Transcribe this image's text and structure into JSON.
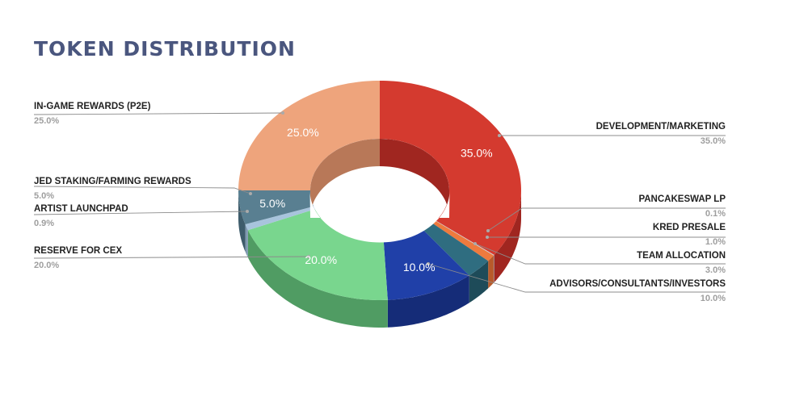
{
  "colors": {
    "title": "#4a567e",
    "leader": "#8c8c8c"
  },
  "chart_data": {
    "type": "pie",
    "style": "3d-donut",
    "title": "TOKEN DISTRIBUTION",
    "unit": "%",
    "legend_placement": "outside labels with leader lines",
    "slices": [
      {
        "label": "DEVELOPMENT/MARKETING",
        "value": 35.0,
        "display": "35.0%",
        "color": "#d43a2f",
        "side": "#a02620",
        "inner_label": true
      },
      {
        "label": "PANCAKESWAP LP",
        "value": 0.1,
        "display": "0.1%",
        "color": "#c6d4de",
        "side": "#98a7b3",
        "inner_label": false
      },
      {
        "label": "KRED PRESALE",
        "value": 1.0,
        "display": "1.0%",
        "color": "#ee7a3e",
        "side": "#b85a2a",
        "inner_label": false
      },
      {
        "label": "TEAM ALLOCATION",
        "value": 3.0,
        "display": "3.0%",
        "color": "#2f6d80",
        "side": "#1e4b59",
        "inner_label": false
      },
      {
        "label": "ADVISORS/CONSULTANTS/INVESTORS",
        "value": 10.0,
        "display": "10.0%",
        "color": "#2040a8",
        "side": "#152c78",
        "inner_label": true
      },
      {
        "label": "RESERVE FOR CEX",
        "value": 20.0,
        "display": "20.0%",
        "color": "#79d68e",
        "side": "#509c63",
        "inner_label": true
      },
      {
        "label": "ARTIST LAUNCHPAD",
        "value": 0.9,
        "display": "0.9%",
        "color": "#a8c4dc",
        "side": "#7f99b0",
        "inner_label": false
      },
      {
        "label": "JED STAKING/FARMING REWARDS",
        "value": 5.0,
        "display": "5.0%",
        "color": "#597f91",
        "side": "#3e5c6b",
        "inner_label": true
      },
      {
        "label": "IN-GAME REWARDS (P2E)",
        "value": 25.0,
        "display": "25.0%",
        "color": "#eea47c",
        "side": "#b87858",
        "inner_label": true
      }
    ]
  }
}
